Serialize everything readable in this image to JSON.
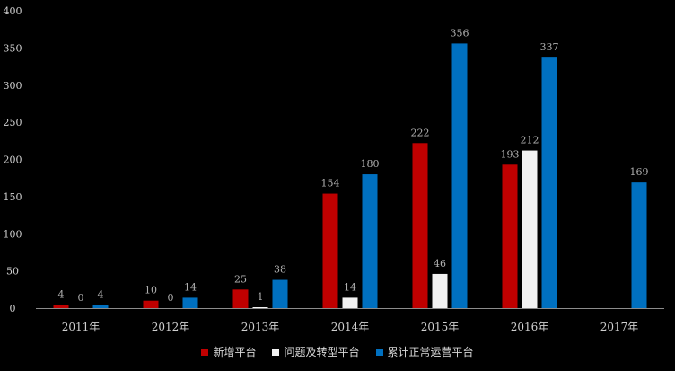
{
  "chart_data": {
    "type": "bar",
    "title": "",
    "xlabel": "",
    "ylabel": "",
    "ylim": [
      0,
      400
    ],
    "yticks": [
      0,
      50,
      100,
      150,
      200,
      250,
      300,
      350,
      400
    ],
    "grid": false,
    "legend_position": "bottom",
    "categories": [
      "2011年",
      "2012年",
      "2013年",
      "2014年",
      "2015年",
      "2016年",
      "2017年"
    ],
    "series": [
      {
        "name": "新增平台",
        "color": "#c00000",
        "values": [
          4,
          10,
          25,
          154,
          222,
          193,
          null
        ]
      },
      {
        "name": "问题及转型平台",
        "color": "#f2f2f2",
        "values": [
          0,
          0,
          1,
          14,
          46,
          212,
          null
        ]
      },
      {
        "name": "累计正常运营平台",
        "color": "#0070c0",
        "values": [
          4,
          14,
          38,
          180,
          356,
          337,
          169
        ]
      }
    ]
  }
}
